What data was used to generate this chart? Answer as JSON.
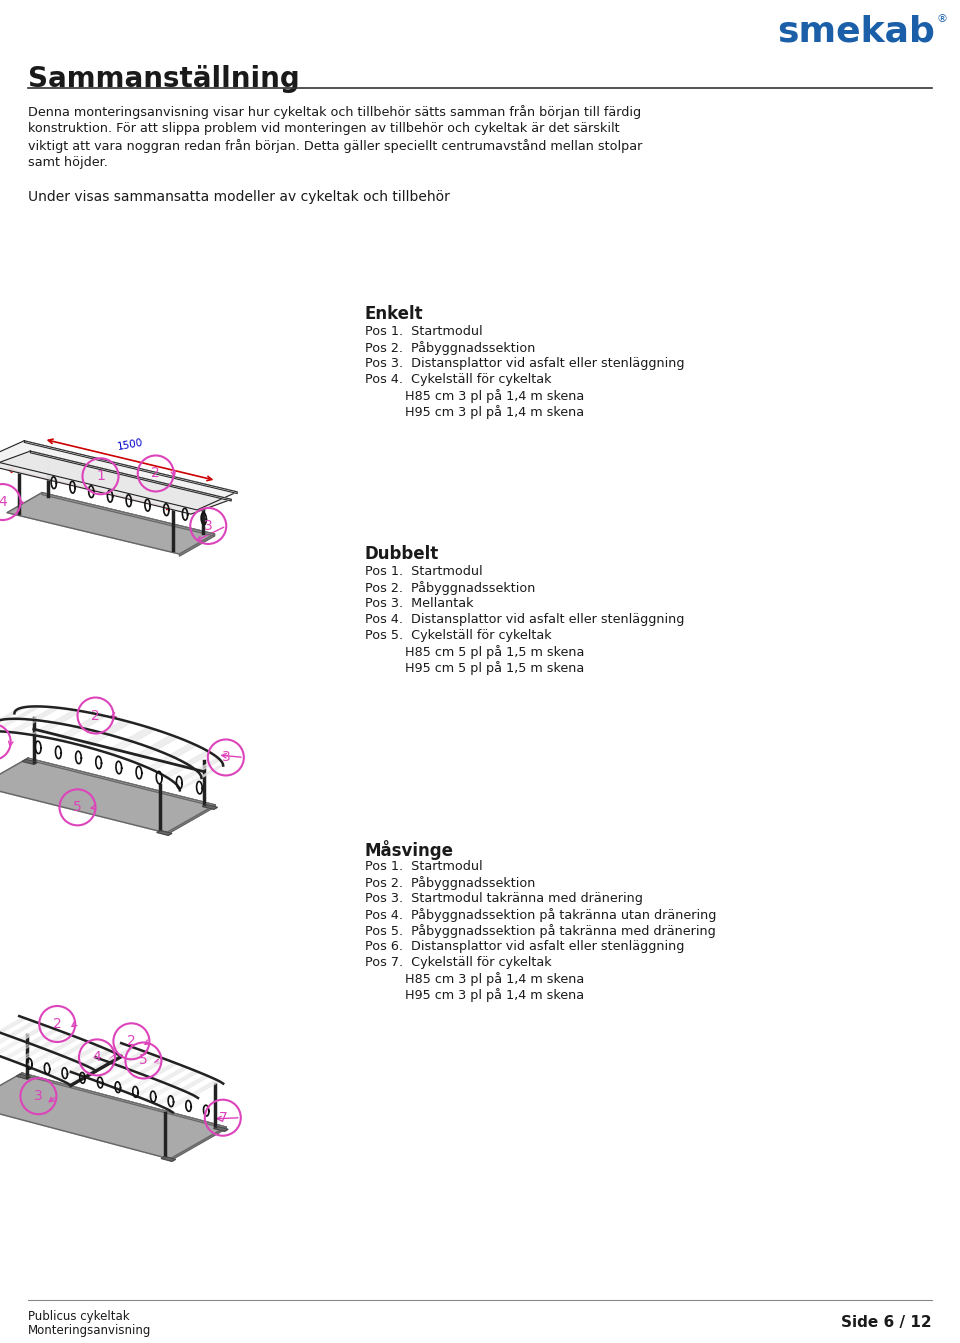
{
  "title": "Sammanställning",
  "logo_text": "smekab",
  "logo_color": "#1a5fa8",
  "body_color": "#1a1a1a",
  "bg_color": "#ffffff",
  "intro_text_lines": [
    "Denna monteringsanvisning visar hur cykeltak och tillbehör sätts samman från början till färdig",
    "konstruktion. För att slippa problem vid monteringen av tillbehör och cykeltak är det särskilt",
    "viktigt att vara noggran redan från början. Detta gäller speciellt centrumavstånd mellan stolpar",
    "samt höjder."
  ],
  "under_text": "Under visas sammansatta modeller av cykeltak och tillbehör",
  "section1_title": "Enkelt",
  "section1_items": [
    "Pos 1.  Startmodul",
    "Pos 2.  Påbyggnadssektion",
    "Pos 3.  Distansplattor vid asfalt eller stenläggning",
    "Pos 4.  Cykelställ för cykeltak",
    "          H85 cm 3 pl på 1,4 m skena",
    "          H95 cm 3 pl på 1,4 m skena"
  ],
  "section2_title": "Dubbelt",
  "section2_items": [
    "Pos 1.  Startmodul",
    "Pos 2.  Påbyggnadssektion",
    "Pos 3.  Mellantak",
    "Pos 4.  Distansplattor vid asfalt eller stenläggning",
    "Pos 5.  Cykelställ för cykeltak",
    "          H85 cm 5 pl på 1,5 m skena",
    "          H95 cm 5 pl på 1,5 m skena"
  ],
  "section3_title": "Måsvinge",
  "section3_items": [
    "Pos 1.  Startmodul",
    "Pos 2.  Påbyggnadssektion",
    "Pos 3.  Startmodul takränna med dränering",
    "Pos 4.  Påbyggnadssektion på takränna utan dränering",
    "Pos 5.  Påbyggnadssektion på takränna med dränering",
    "Pos 6.  Distansplattor vid asfalt eller stenläggning",
    "Pos 7.  Cykelställ för cykeltak",
    "          H85 cm 3 pl på 1,4 m skena",
    "          H95 cm 3 pl på 1,4 m skena"
  ],
  "footer_left1": "Publicus cykeltak",
  "footer_left2": "Monteringsanvisning",
  "footer_right": "Side 6 / 12",
  "circle_color": "#dd44bb",
  "dim_color": "#0000cc",
  "dim_arrow_color": "#cc0000",
  "struct_color": "#222222",
  "roof_fill": "#e8e8e8",
  "platform_fill": "#aaaaaa",
  "platform_edge": "#666666"
}
